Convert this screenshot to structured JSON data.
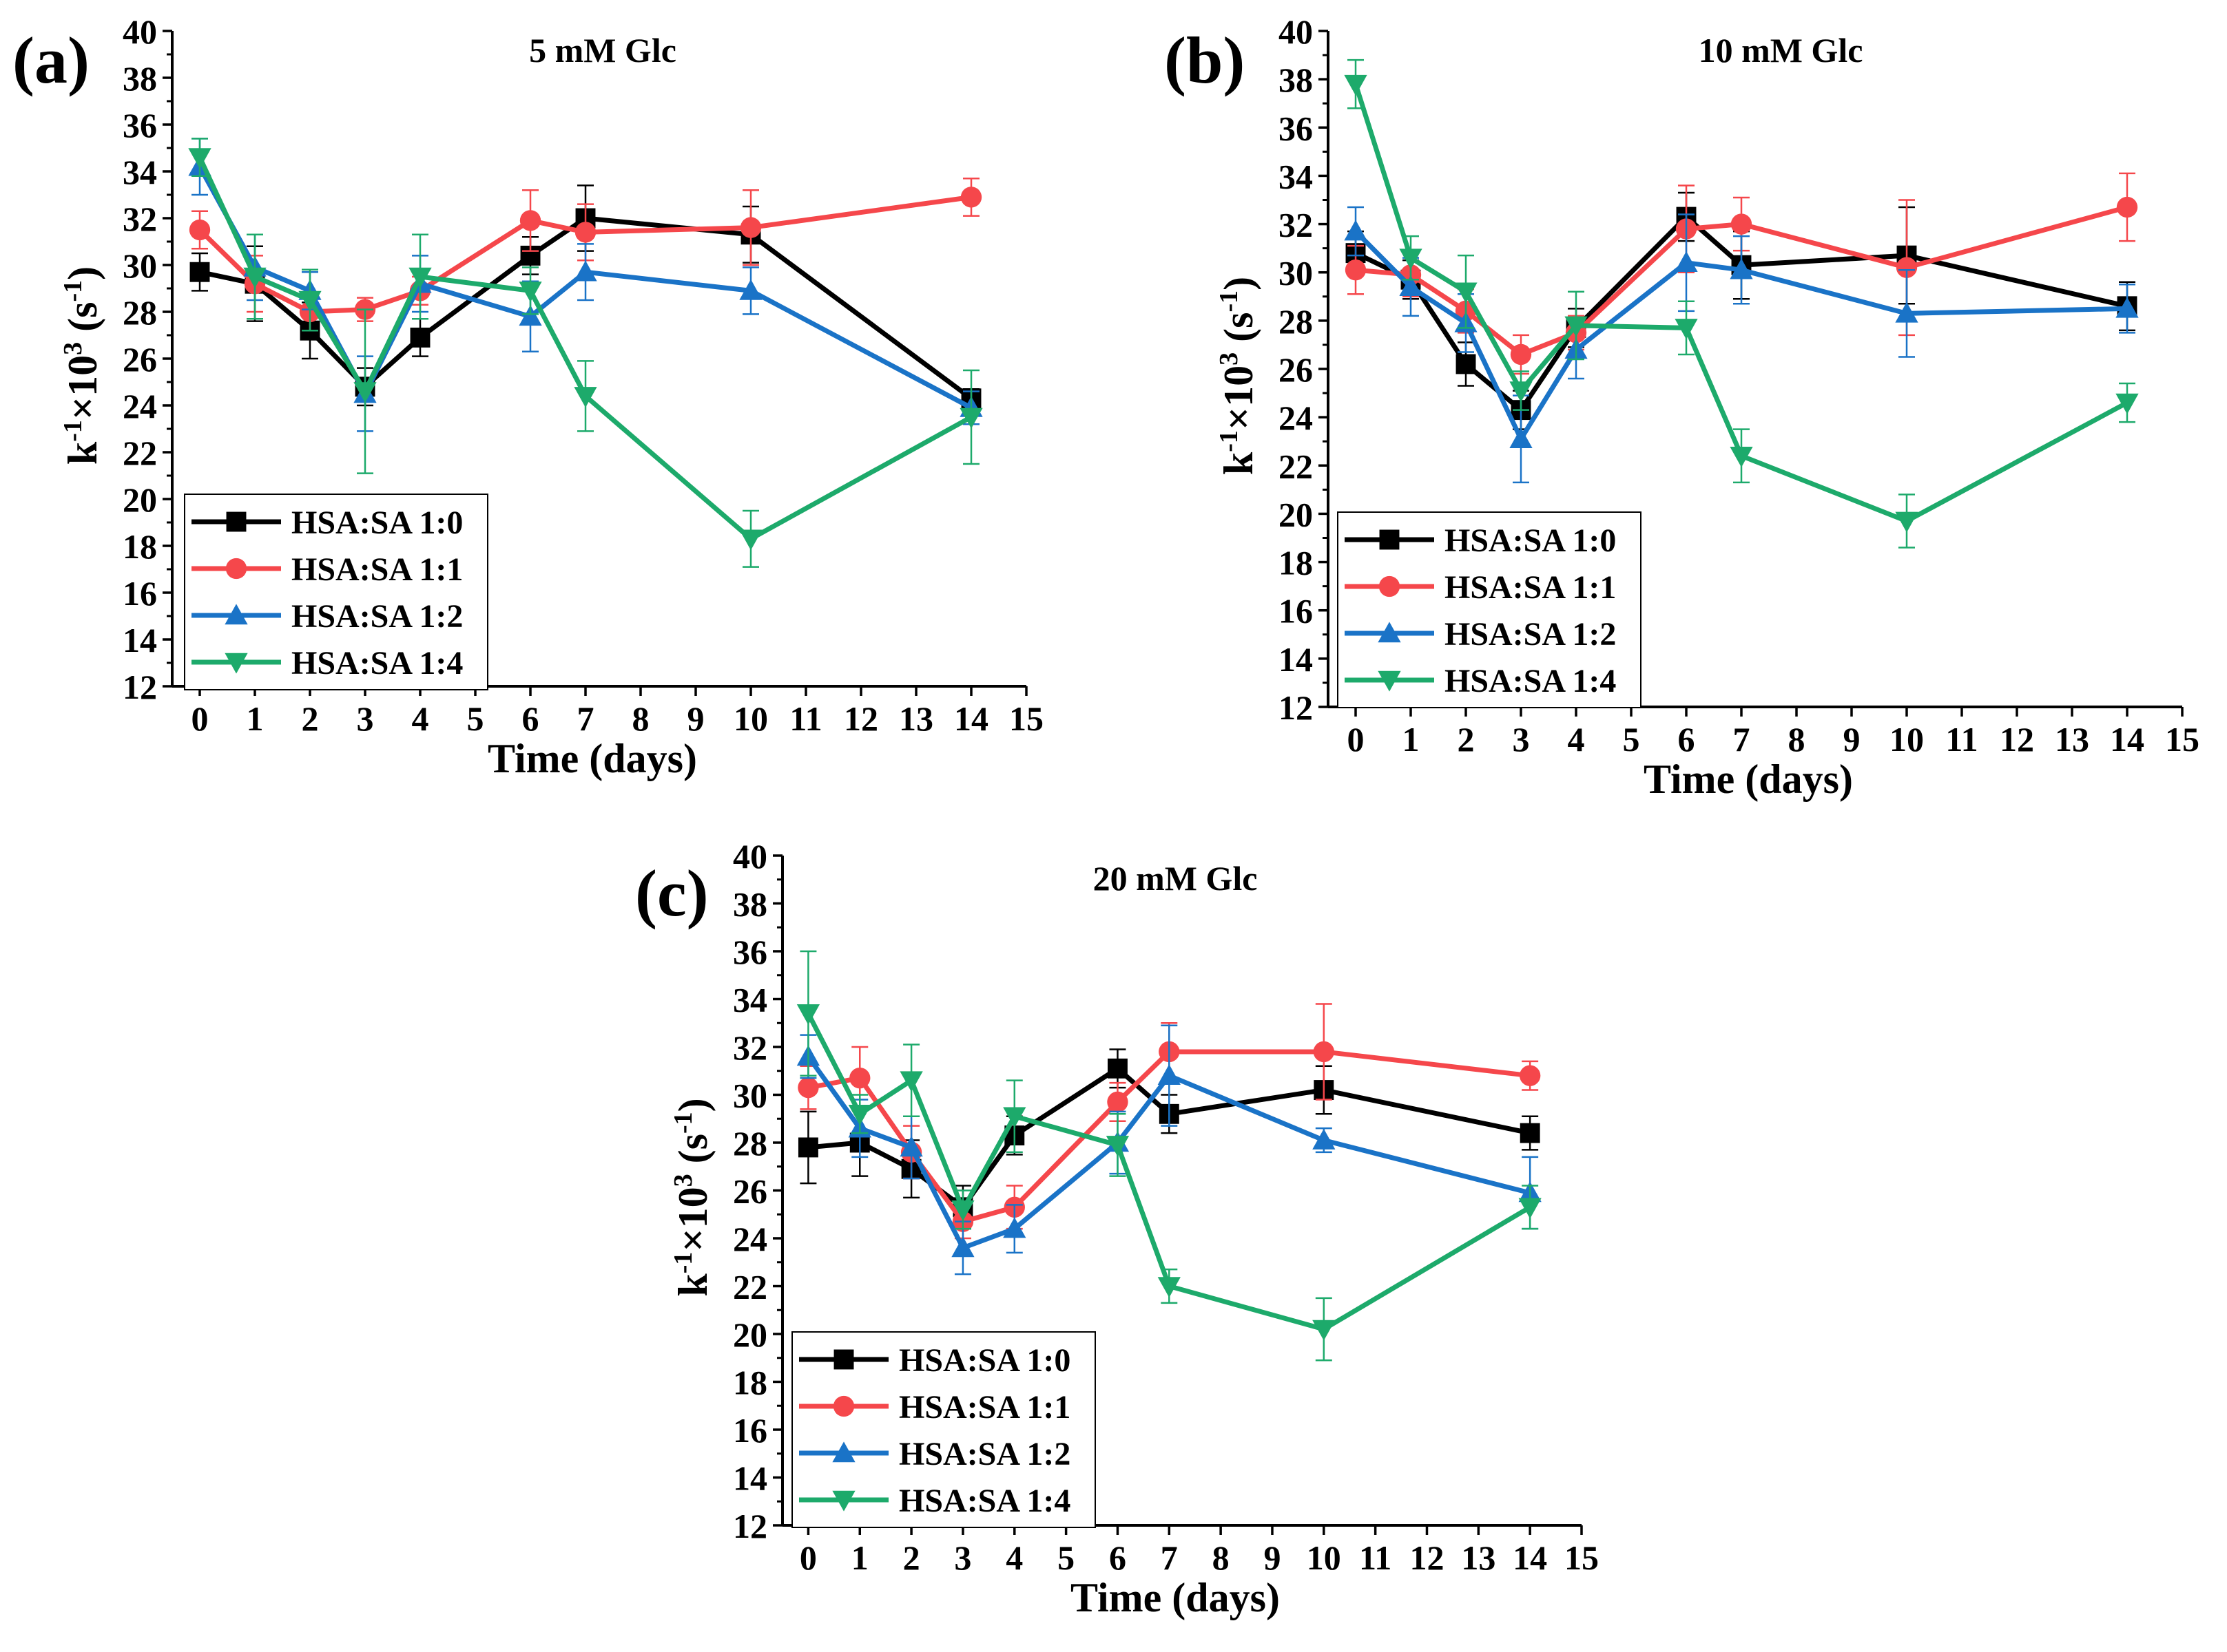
{
  "figure_colors": {
    "HSA:SA 1:0": "#000000",
    "HSA:SA 1:1": "#f5474b",
    "HSA:SA 1:2": "#1a73c7",
    "HSA:SA 1:4": "#1daa6b"
  },
  "chart_data": [
    {
      "type": "line",
      "panel_label": "(a)",
      "title": "5 mM Glc",
      "xlabel": "Time (days)",
      "ylabel_parts": {
        "k": "k",
        "exp1": "-1",
        "mul": "×10",
        "exp2": "3",
        "unit_open": " (s",
        "exp3": "-1",
        "unit_close": ")"
      },
      "xlim": [
        -0.5,
        15
      ],
      "ylim": [
        12,
        40
      ],
      "xticks": [
        "0",
        "1",
        "2",
        "3",
        "4",
        "5",
        "6",
        "7",
        "8",
        "9",
        "10",
        "11",
        "12",
        "13",
        "14",
        "15"
      ],
      "yticks": [
        "12",
        "14",
        "16",
        "18",
        "20",
        "22",
        "24",
        "26",
        "28",
        "30",
        "32",
        "34",
        "36",
        "38",
        "40"
      ],
      "x": [
        0,
        1,
        2,
        3,
        4,
        6,
        7,
        10,
        14
      ],
      "series": [
        {
          "name": "HSA:SA 1:0",
          "marker": "square",
          "values": [
            29.7,
            29.2,
            27.2,
            24.8,
            26.9,
            30.4,
            32.0,
            31.3,
            24.3
          ],
          "errors": [
            0.8,
            1.6,
            1.2,
            0.8,
            0.8,
            0.8,
            1.4,
            1.2,
            0.4
          ]
        },
        {
          "name": "HSA:SA 1:1",
          "marker": "circle",
          "values": [
            31.5,
            29.2,
            28.0,
            28.1,
            28.9,
            31.9,
            31.4,
            31.6,
            32.9
          ],
          "errors": [
            0.8,
            1.2,
            0.8,
            0.5,
            0.6,
            1.3,
            1.2,
            1.6,
            0.8
          ]
        },
        {
          "name": "HSA:SA 1:2",
          "marker": "triangle-up",
          "values": [
            34.2,
            29.9,
            28.9,
            24.5,
            29.2,
            27.8,
            29.7,
            28.9,
            23.9
          ],
          "errors": [
            1.2,
            1.4,
            0.8,
            1.6,
            1.2,
            1.5,
            1.2,
            1.0,
            0.7
          ]
        },
        {
          "name": "HSA:SA 1:4",
          "marker": "triangle-down",
          "values": [
            34.6,
            29.5,
            28.5,
            24.6,
            29.5,
            28.9,
            24.4,
            18.3,
            23.5
          ],
          "errors": [
            0.8,
            1.8,
            1.3,
            3.5,
            1.8,
            1.0,
            1.5,
            1.2,
            2.0
          ]
        }
      ]
    },
    {
      "type": "line",
      "panel_label": "(b)",
      "title": "10 mM Glc",
      "xlabel": "Time (days)",
      "ylabel_parts": {
        "k": "k",
        "exp1": "-1",
        "mul": "×10",
        "exp2": "3",
        "unit_open": " (s",
        "exp3": "-1",
        "unit_close": ")"
      },
      "xlim": [
        -0.5,
        15
      ],
      "ylim": [
        12,
        40
      ],
      "xticks": [
        "0",
        "1",
        "2",
        "3",
        "4",
        "5",
        "6",
        "7",
        "8",
        "9",
        "10",
        "11",
        "12",
        "13",
        "14",
        "15"
      ],
      "yticks": [
        "12",
        "14",
        "16",
        "18",
        "20",
        "22",
        "24",
        "26",
        "28",
        "30",
        "32",
        "34",
        "36",
        "38",
        "40"
      ],
      "x": [
        0,
        1,
        2,
        3,
        4,
        6,
        7,
        10,
        14
      ],
      "series": [
        {
          "name": "HSA:SA 1:0",
          "marker": "square",
          "values": [
            30.8,
            29.7,
            26.2,
            24.3,
            27.7,
            32.3,
            30.3,
            30.7,
            28.6
          ],
          "errors": [
            0.9,
            0.8,
            0.9,
            0.8,
            0.8,
            1.0,
            1.4,
            2.0,
            1.0
          ]
        },
        {
          "name": "HSA:SA 1:1",
          "marker": "circle",
          "values": [
            30.1,
            29.9,
            28.4,
            26.6,
            27.5,
            31.8,
            32.0,
            30.2,
            32.7
          ],
          "errors": [
            1.0,
            0.9,
            0.9,
            0.8,
            0.7,
            1.8,
            1.1,
            2.8,
            1.4
          ]
        },
        {
          "name": "HSA:SA 1:2",
          "marker": "triangle-up",
          "values": [
            31.7,
            29.4,
            27.9,
            23.1,
            26.8,
            30.4,
            30.1,
            28.3,
            28.5
          ],
          "errors": [
            1.0,
            1.2,
            1.2,
            1.8,
            1.2,
            2.0,
            1.4,
            1.8,
            1.0
          ]
        },
        {
          "name": "HSA:SA 1:4",
          "marker": "triangle-down",
          "values": [
            37.8,
            30.6,
            29.2,
            25.1,
            27.8,
            27.7,
            22.4,
            19.7,
            24.6
          ],
          "errors": [
            1.0,
            0.9,
            1.5,
            0.8,
            1.4,
            1.1,
            1.1,
            1.1,
            0.8
          ]
        }
      ]
    },
    {
      "type": "line",
      "panel_label": "(c)",
      "title": "20 mM Glc",
      "xlabel": "Time (days)",
      "ylabel_parts": {
        "k": "k",
        "exp1": "-1",
        "mul": "×10",
        "exp2": "3",
        "unit_open": " (s",
        "exp3": "-1",
        "unit_close": ")"
      },
      "xlim": [
        -0.5,
        15
      ],
      "ylim": [
        12,
        40
      ],
      "xticks": [
        "0",
        "1",
        "2",
        "3",
        "4",
        "5",
        "6",
        "7",
        "8",
        "9",
        "10",
        "11",
        "12",
        "13",
        "14",
        "15"
      ],
      "yticks": [
        "12",
        "14",
        "16",
        "18",
        "20",
        "22",
        "24",
        "26",
        "28",
        "30",
        "32",
        "34",
        "36",
        "38",
        "40"
      ],
      "x": [
        0,
        1,
        2,
        3,
        4,
        6,
        7,
        10,
        14
      ],
      "series": [
        {
          "name": "HSA:SA 1:0",
          "marker": "square",
          "values": [
            27.8,
            28.0,
            26.9,
            25.3,
            28.3,
            31.1,
            29.2,
            30.2,
            28.4
          ],
          "errors": [
            1.5,
            1.4,
            1.2,
            0.9,
            0.8,
            0.8,
            0.8,
            1.0,
            0.7
          ]
        },
        {
          "name": "HSA:SA 1:1",
          "marker": "circle",
          "values": [
            30.3,
            30.7,
            27.6,
            24.7,
            25.3,
            29.7,
            31.8,
            31.8,
            30.8
          ],
          "errors": [
            0.9,
            1.3,
            1.1,
            0.7,
            0.9,
            0.8,
            1.2,
            2.0,
            0.6
          ]
        },
        {
          "name": "HSA:SA 1:2",
          "marker": "triangle-up",
          "values": [
            31.6,
            28.6,
            27.8,
            23.6,
            24.4,
            28.0,
            30.8,
            28.1,
            25.9
          ],
          "errors": [
            0.9,
            1.2,
            1.3,
            1.1,
            1.0,
            1.3,
            2.1,
            0.5,
            1.5
          ]
        },
        {
          "name": "HSA:SA 1:4",
          "marker": "triangle-down",
          "values": [
            33.4,
            29.2,
            30.6,
            25.2,
            29.1,
            27.9,
            22.0,
            20.2,
            25.3
          ],
          "errors": [
            2.6,
            0.8,
            1.5,
            0.8,
            1.5,
            1.3,
            0.7,
            1.3,
            0.9
          ]
        }
      ]
    }
  ]
}
